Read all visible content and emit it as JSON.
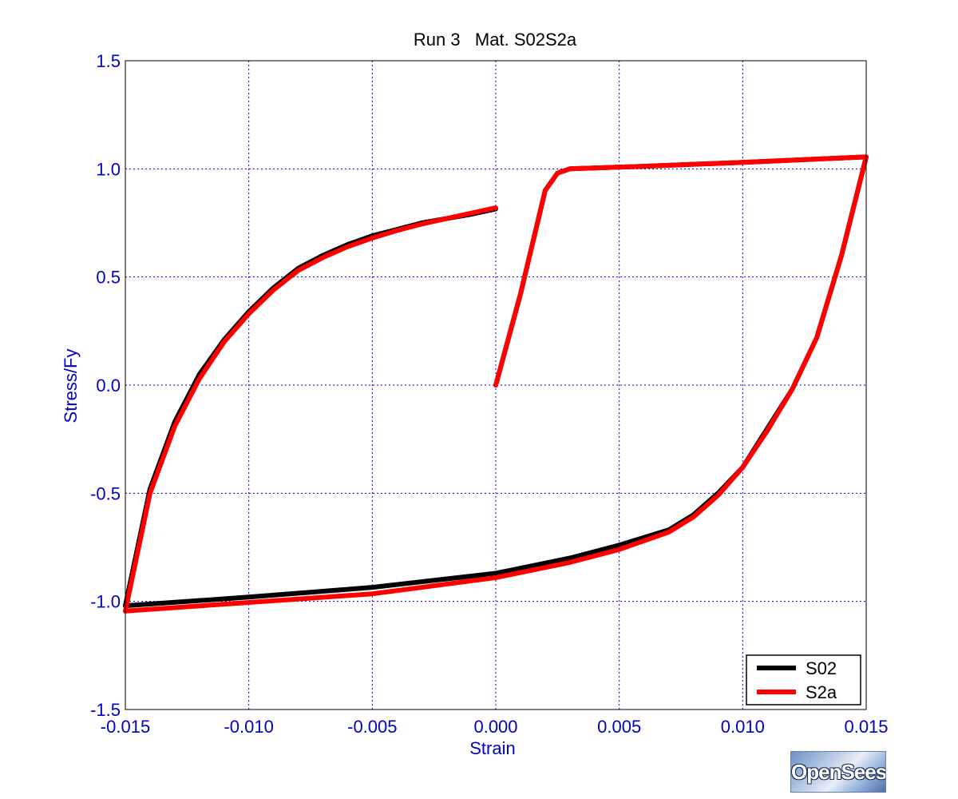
{
  "chart_data": {
    "type": "line",
    "title": "Run 3   Mat. S02S2a",
    "xlabel": "Strain",
    "ylabel": "Stress/Fy",
    "xlim": [
      -0.015,
      0.015
    ],
    "ylim": [
      -1.5,
      1.5
    ],
    "xticks": [
      -0.015,
      -0.01,
      -0.005,
      0.0,
      0.005,
      0.01,
      0.015
    ],
    "xtick_labels": [
      "-0.015",
      "-0.010",
      "-0.005",
      "0.000",
      "0.005",
      "0.010",
      "0.015"
    ],
    "yticks": [
      1.5,
      1.0,
      0.5,
      0.0,
      -0.5,
      -1.0,
      -1.5
    ],
    "ytick_labels": [
      "1.5",
      "1.0",
      "0.5",
      "0.0",
      "-0.5",
      "-1.0",
      "-1.5"
    ],
    "grid": true,
    "legend_position": "bottom-right",
    "series": [
      {
        "name": "S02",
        "color": "#000000",
        "segments": [
          [
            [
              0.0,
              0.0
            ],
            [
              0.001,
              0.42
            ],
            [
              0.002,
              0.9
            ],
            [
              0.0025,
              0.98
            ],
            [
              0.003,
              1.0
            ],
            [
              0.006,
              1.012
            ],
            [
              0.01,
              1.03
            ],
            [
              0.015,
              1.055
            ]
          ],
          [
            [
              0.015,
              1.055
            ],
            [
              0.014,
              0.6
            ],
            [
              0.013,
              0.22
            ],
            [
              0.012,
              -0.02
            ],
            [
              0.011,
              -0.2
            ],
            [
              0.01,
              -0.38
            ],
            [
              0.009,
              -0.5
            ],
            [
              0.008,
              -0.6
            ],
            [
              0.007,
              -0.67
            ],
            [
              0.005,
              -0.74
            ],
            [
              0.003,
              -0.8
            ],
            [
              0.0,
              -0.87
            ],
            [
              -0.005,
              -0.935
            ],
            [
              -0.01,
              -0.98
            ],
            [
              -0.015,
              -1.02
            ]
          ],
          [
            [
              -0.015,
              -1.02
            ],
            [
              -0.014,
              -0.48
            ],
            [
              -0.013,
              -0.17
            ],
            [
              -0.012,
              0.05
            ],
            [
              -0.011,
              0.21
            ],
            [
              -0.01,
              0.34
            ],
            [
              -0.009,
              0.45
            ],
            [
              -0.008,
              0.54
            ],
            [
              -0.007,
              0.6
            ],
            [
              -0.006,
              0.65
            ],
            [
              -0.005,
              0.69
            ],
            [
              -0.004,
              0.72
            ],
            [
              -0.003,
              0.75
            ],
            [
              -0.002,
              0.77
            ],
            [
              -0.001,
              0.79
            ],
            [
              0.0,
              0.815
            ]
          ]
        ]
      },
      {
        "name": "S2a",
        "color": "#ff0000",
        "segments": [
          [
            [
              0.0,
              0.0
            ],
            [
              0.001,
              0.42
            ],
            [
              0.002,
              0.9
            ],
            [
              0.0025,
              0.98
            ],
            [
              0.003,
              1.0
            ],
            [
              0.006,
              1.012
            ],
            [
              0.01,
              1.03
            ],
            [
              0.015,
              1.055
            ]
          ],
          [
            [
              0.015,
              1.055
            ],
            [
              0.014,
              0.6
            ],
            [
              0.013,
              0.22
            ],
            [
              0.012,
              -0.02
            ],
            [
              0.011,
              -0.21
            ],
            [
              0.01,
              -0.38
            ],
            [
              0.009,
              -0.51
            ],
            [
              0.008,
              -0.61
            ],
            [
              0.007,
              -0.68
            ],
            [
              0.005,
              -0.76
            ],
            [
              0.003,
              -0.82
            ],
            [
              0.0,
              -0.89
            ],
            [
              -0.005,
              -0.965
            ],
            [
              -0.01,
              -1.005
            ],
            [
              -0.015,
              -1.045
            ]
          ],
          [
            [
              -0.015,
              -1.045
            ],
            [
              -0.014,
              -0.5
            ],
            [
              -0.013,
              -0.19
            ],
            [
              -0.012,
              0.03
            ],
            [
              -0.011,
              0.2
            ],
            [
              -0.01,
              0.33
            ],
            [
              -0.009,
              0.44
            ],
            [
              -0.008,
              0.53
            ],
            [
              -0.007,
              0.59
            ],
            [
              -0.006,
              0.64
            ],
            [
              -0.005,
              0.68
            ],
            [
              -0.004,
              0.715
            ],
            [
              -0.003,
              0.745
            ],
            [
              -0.002,
              0.77
            ],
            [
              -0.001,
              0.795
            ],
            [
              0.0,
              0.82
            ]
          ]
        ]
      }
    ]
  },
  "logo_text": "OpenSees",
  "colors": {
    "axis_text": "#0000cc",
    "grid": "#0000cc",
    "title": "#000000",
    "background": "#ffffff"
  }
}
